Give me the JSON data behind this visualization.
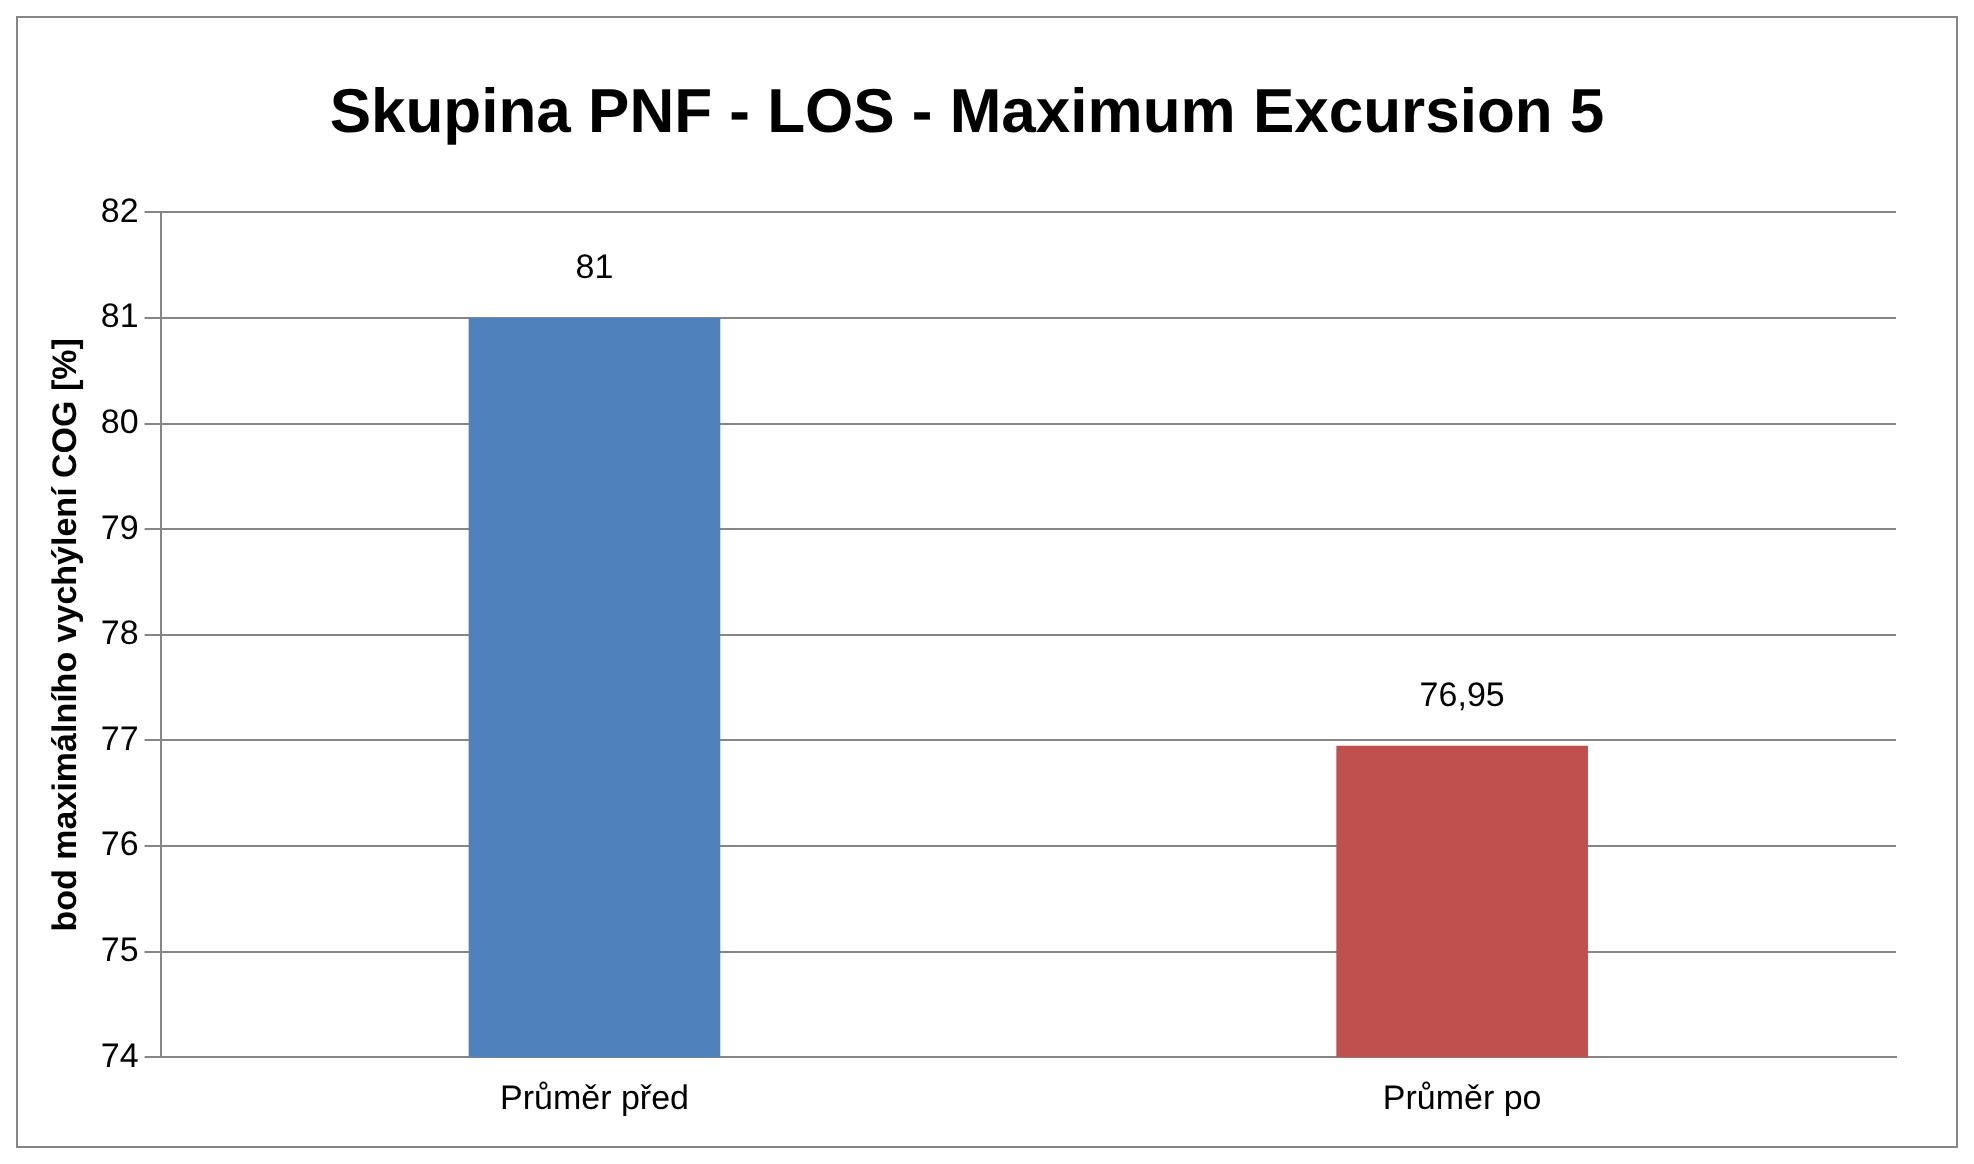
{
  "chart_data": {
    "type": "bar",
    "title": "Skupina PNF - LOS - Maximum Excursion 5",
    "ylabel": "bod maximálního vychýlení COG [%]",
    "categories": [
      "Průměr před",
      "Průměr po"
    ],
    "values": [
      81,
      76.95
    ],
    "colors": [
      "#4f81bd",
      "#c0504d"
    ],
    "value_labels": [
      "81",
      "76,95"
    ],
    "ylim": [
      74,
      82
    ],
    "yticks": [
      74,
      75,
      76,
      77,
      78,
      79,
      80,
      81,
      82
    ],
    "grid": "y",
    "legend": false
  }
}
